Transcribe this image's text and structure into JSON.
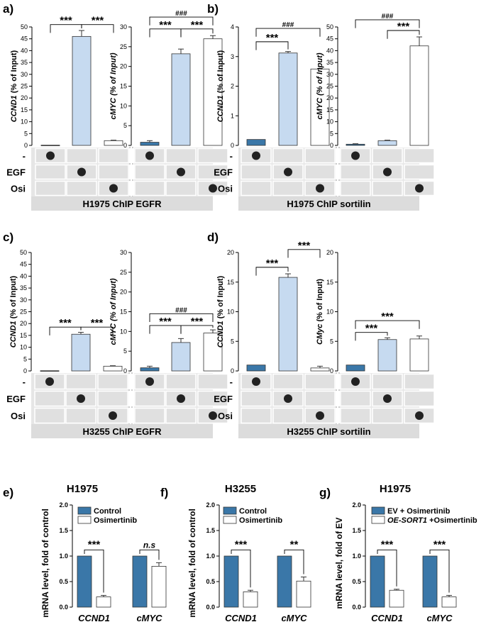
{
  "figure": {
    "top_panels": [
      {
        "letter": "a)",
        "footer": "H1975 ChIP EGFR",
        "row_labels": [
          "-",
          "EGF",
          "Osi"
        ],
        "charts": [
          {
            "type": "bar",
            "gene": "CCND1",
            "ylabel_rest": " (% of Input)",
            "ylabel_italic_all": false,
            "ylim": [
              0,
              50
            ],
            "ticks": [
              0,
              5,
              10,
              15,
              20,
              25,
              30,
              35,
              40,
              45,
              50
            ],
            "categories": [
              "-",
              "EGF",
              "Osi"
            ],
            "values": [
              0.1,
              46,
              2
            ],
            "errors": [
              0,
              2.5,
              0.2
            ],
            "annotations": [
              {
                "from": 0,
                "to": 1,
                "label": "***",
                "level": 51
              },
              {
                "from": 1,
                "to": 2,
                "label": "***",
                "level": 51
              }
            ]
          },
          {
            "type": "bar",
            "gene": "cMYC",
            "ylabel_rest": " (% of Input)",
            "ylabel_italic_all": true,
            "ylim": [
              0,
              30
            ],
            "ticks": [
              0,
              5,
              10,
              15,
              20,
              25,
              30
            ],
            "categories": [
              "-",
              "EGF",
              "Osi"
            ],
            "values": [
              0.8,
              23.2,
              27
            ],
            "errors": [
              0.4,
              1.2,
              0.8
            ],
            "annotations": [
              {
                "from": 0,
                "to": 1,
                "label": "***",
                "level": 29.5
              },
              {
                "from": 1,
                "to": 2,
                "label": "***",
                "level": 29.5
              },
              {
                "from": 0,
                "to": 2,
                "label": "###",
                "level": 32.5
              }
            ]
          }
        ]
      },
      {
        "letter": "b)",
        "footer": "H1975 ChIP sortilin",
        "row_labels": [
          "-",
          "EGF",
          "Osi"
        ],
        "charts": [
          {
            "type": "bar",
            "gene": "CCND1",
            "ylabel_rest": " (% of Input)",
            "ylabel_italic_all": false,
            "ylim": [
              0,
              4
            ],
            "ticks": [
              0,
              1,
              2,
              3,
              4
            ],
            "categories": [
              "-",
              "EGF",
              "Osi"
            ],
            "values": [
              0.2,
              3.12,
              2.58
            ],
            "errors": [
              0,
              0.05,
              0.02
            ],
            "annotations": [
              {
                "from": 0,
                "to": 1,
                "label": "***",
                "level": 3.5
              },
              {
                "from": 0,
                "to": 2,
                "label": "###",
                "level": 3.95
              }
            ]
          },
          {
            "type": "bar",
            "gene": "cMYC",
            "ylabel_rest": " (% of Input)",
            "ylabel_italic_all": true,
            "ylim": [
              0,
              50
            ],
            "ticks": [
              0,
              5,
              10,
              15,
              20,
              25,
              30,
              35,
              40,
              45,
              50
            ],
            "categories": [
              "-",
              "EGF",
              "Osi"
            ],
            "values": [
              0.5,
              2,
              42
            ],
            "errors": [
              0.2,
              0.2,
              3.8
            ],
            "annotations": [
              {
                "from": 1,
                "to": 2,
                "label": "***",
                "level": 48.5
              },
              {
                "from": 0,
                "to": 2,
                "label": "###",
                "level": 53
              }
            ]
          }
        ]
      },
      {
        "letter": "c)",
        "footer": "H3255 ChIP EGFR",
        "row_labels": [
          "-",
          "EGF",
          "Osi"
        ],
        "charts": [
          {
            "type": "bar",
            "gene": "CCND1",
            "ylabel_rest": " (% of Input)",
            "ylabel_italic_all": false,
            "ylim": [
              0,
              50
            ],
            "ticks": [
              0,
              5,
              10,
              15,
              20,
              25,
              30,
              35,
              40,
              45,
              50
            ],
            "categories": [
              "-",
              "EGF",
              "Osi"
            ],
            "values": [
              0.1,
              15.5,
              2
            ],
            "errors": [
              0,
              0.8,
              0.2
            ],
            "annotations": [
              {
                "from": 0,
                "to": 1,
                "label": "***",
                "level": 18.5
              },
              {
                "from": 1,
                "to": 2,
                "label": "***",
                "level": 18.5
              }
            ]
          },
          {
            "type": "bar",
            "gene": "cMYC",
            "ylabel_rest": " (% of Input)",
            "ylabel_italic_all": true,
            "ylim": [
              0,
              30
            ],
            "ticks": [
              0,
              5,
              10,
              15,
              20,
              25,
              30
            ],
            "categories": [
              "-",
              "EGF",
              "Osi"
            ],
            "values": [
              0.8,
              7.2,
              9.6
            ],
            "errors": [
              0.4,
              1,
              0.8
            ],
            "annotations": [
              {
                "from": 0,
                "to": 1,
                "label": "***",
                "level": 11.5
              },
              {
                "from": 1,
                "to": 2,
                "label": "***",
                "level": 11.5
              },
              {
                "from": 0,
                "to": 2,
                "label": "###",
                "level": 14.5
              }
            ]
          }
        ]
      },
      {
        "letter": "d)",
        "footer": "H3255 ChIP sortilin",
        "row_labels": [
          "-",
          "EGF",
          "Osi"
        ],
        "charts": [
          {
            "type": "bar",
            "gene": "CCND1",
            "ylabel_rest": " (% of Input)",
            "ylabel_italic_all": false,
            "ylim": [
              0,
              20
            ],
            "ticks": [
              0,
              5,
              10,
              15,
              20
            ],
            "categories": [
              "-",
              "EGF",
              "Osi"
            ],
            "values": [
              1,
              15.8,
              0.5
            ],
            "errors": [
              0,
              0.6,
              0.3
            ],
            "annotations": [
              {
                "from": 0,
                "to": 1,
                "label": "***",
                "level": 17.5
              },
              {
                "from": 1,
                "to": 2,
                "label": "***",
                "level": 20.5
              }
            ]
          },
          {
            "type": "bar",
            "gene": "CMyc",
            "ylabel_rest": " (% of Input)",
            "ylabel_italic_all": false,
            "ylim": [
              0,
              20
            ],
            "ticks": [
              0,
              5,
              10,
              15,
              20
            ],
            "categories": [
              "-",
              "EGF",
              "Osi"
            ],
            "values": [
              1,
              5.3,
              5.4
            ],
            "errors": [
              0,
              0.3,
              0.5
            ],
            "annotations": [
              {
                "from": 0,
                "to": 1,
                "label": "***",
                "level": 6.5
              },
              {
                "from": 0,
                "to": 2,
                "label": "***",
                "level": 8.5
              }
            ]
          }
        ]
      }
    ],
    "bottom_panels": [
      {
        "letter": "e)",
        "title": "H1975",
        "ylabel": "mRNA level, fold of control",
        "ylim": [
          0,
          2
        ],
        "ticks": [
          "0.0",
          "0.5",
          "1.0",
          "1.5",
          "2.0"
        ],
        "legend": [
          {
            "label": "Control",
            "italic_prefix": ""
          },
          {
            "label": "Osimertinib",
            "italic_prefix": ""
          }
        ],
        "categories": [
          "CCND1",
          "cMYC"
        ],
        "series": [
          {
            "name": "Control",
            "values": [
              1.0,
              1.0
            ],
            "errors": [
              0,
              0
            ]
          },
          {
            "name": "Osimertinib",
            "values": [
              0.2,
              0.8
            ],
            "errors": [
              0.03,
              0.07
            ]
          }
        ],
        "annotations": [
          {
            "category": 0,
            "label": "***",
            "italic": false
          },
          {
            "category": 1,
            "label": "n.s",
            "italic": true
          }
        ]
      },
      {
        "letter": "f)",
        "title": "H3255",
        "ylabel": "mRNA level, fold of control",
        "ylim": [
          0,
          2
        ],
        "ticks": [
          "0.0",
          "0.5",
          "1.0",
          "1.5",
          "2.0"
        ],
        "legend": [
          {
            "label": "Control",
            "italic_prefix": ""
          },
          {
            "label": "Osimertinib",
            "italic_prefix": ""
          }
        ],
        "categories": [
          "CCND1",
          "cMYC"
        ],
        "series": [
          {
            "name": "Control",
            "values": [
              1.0,
              1.0
            ],
            "errors": [
              0,
              0
            ]
          },
          {
            "name": "Osimertinib",
            "values": [
              0.3,
              0.51
            ],
            "errors": [
              0.03,
              0.08
            ]
          }
        ],
        "annotations": [
          {
            "category": 0,
            "label": "***",
            "italic": false
          },
          {
            "category": 1,
            "label": "**",
            "italic": false
          }
        ]
      },
      {
        "letter": "g)",
        "title": "H1975",
        "ylabel": "mRNA level, fold of EV",
        "ylim": [
          0,
          2
        ],
        "ticks": [
          "0.0",
          "0.5",
          "1.0",
          "1.5",
          "2.0"
        ],
        "legend": [
          {
            "label": "EV + Osimertinib",
            "italic_prefix": ""
          },
          {
            "label": " +Osimertinib",
            "italic_prefix": "OE-SORT1"
          }
        ],
        "categories": [
          "CCND1",
          "cMYC"
        ],
        "series": [
          {
            "name": "EV + Osimertinib",
            "values": [
              1.0,
              1.0
            ],
            "errors": [
              0,
              0
            ]
          },
          {
            "name": "OE-SORT1 +Osimertinib",
            "values": [
              0.33,
              0.2
            ],
            "errors": [
              0.02,
              0.03
            ]
          }
        ],
        "annotations": [
          {
            "category": 0,
            "label": "***",
            "italic": false
          },
          {
            "category": 1,
            "label": "***",
            "italic": false
          }
        ]
      }
    ]
  },
  "colors": {
    "bar_dark": "#3a77a8",
    "bar_light": "#c6daf0",
    "bar_white": "#ffffff",
    "grid_fill": "#e6e6e6",
    "axis": "#000000"
  }
}
